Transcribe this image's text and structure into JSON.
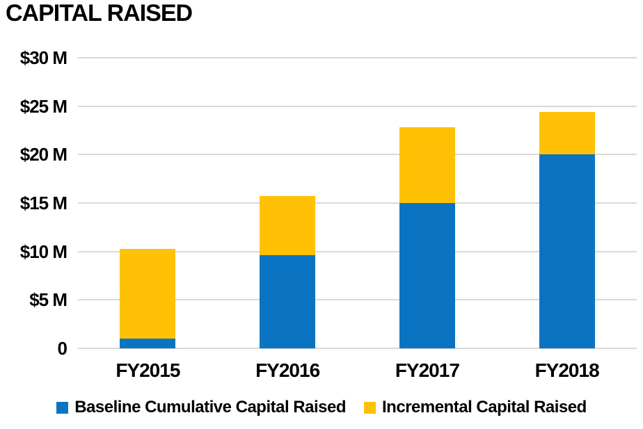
{
  "page": {
    "background_color": "#FFFFFF",
    "text_color": "#000000",
    "gridline_color": "#D9D9D9"
  },
  "chart_data": {
    "type": "bar",
    "stacked": true,
    "title": "CAPITAL RAISED",
    "xlabel": "",
    "ylabel": "",
    "categories": [
      "FY2015",
      "FY2016",
      "FY2017",
      "FY2018"
    ],
    "series": [
      {
        "name": "Baseline Cumulative Capital Raised",
        "color": "#0B74C2",
        "values": [
          1.0,
          9.6,
          15.0,
          20.0
        ]
      },
      {
        "name": "Incremental Capital Raised",
        "color": "#FFC105",
        "values": [
          9.3,
          6.1,
          7.8,
          4.4
        ]
      }
    ],
    "stack_totals": [
      10.3,
      15.7,
      22.8,
      24.4
    ],
    "units": "$ Millions",
    "ylim": [
      0,
      30
    ],
    "yticks": [
      {
        "label": "$30 M",
        "value": 30
      },
      {
        "label": "$25 M",
        "value": 25
      },
      {
        "label": "$20 M",
        "value": 20
      },
      {
        "label": "$15 M",
        "value": 15
      },
      {
        "label": "$10 M",
        "value": 10
      },
      {
        "label": "$5 M",
        "value": 5
      },
      {
        "label": "0",
        "value": 0
      }
    ],
    "grid": true,
    "legend_position": "bottom"
  }
}
